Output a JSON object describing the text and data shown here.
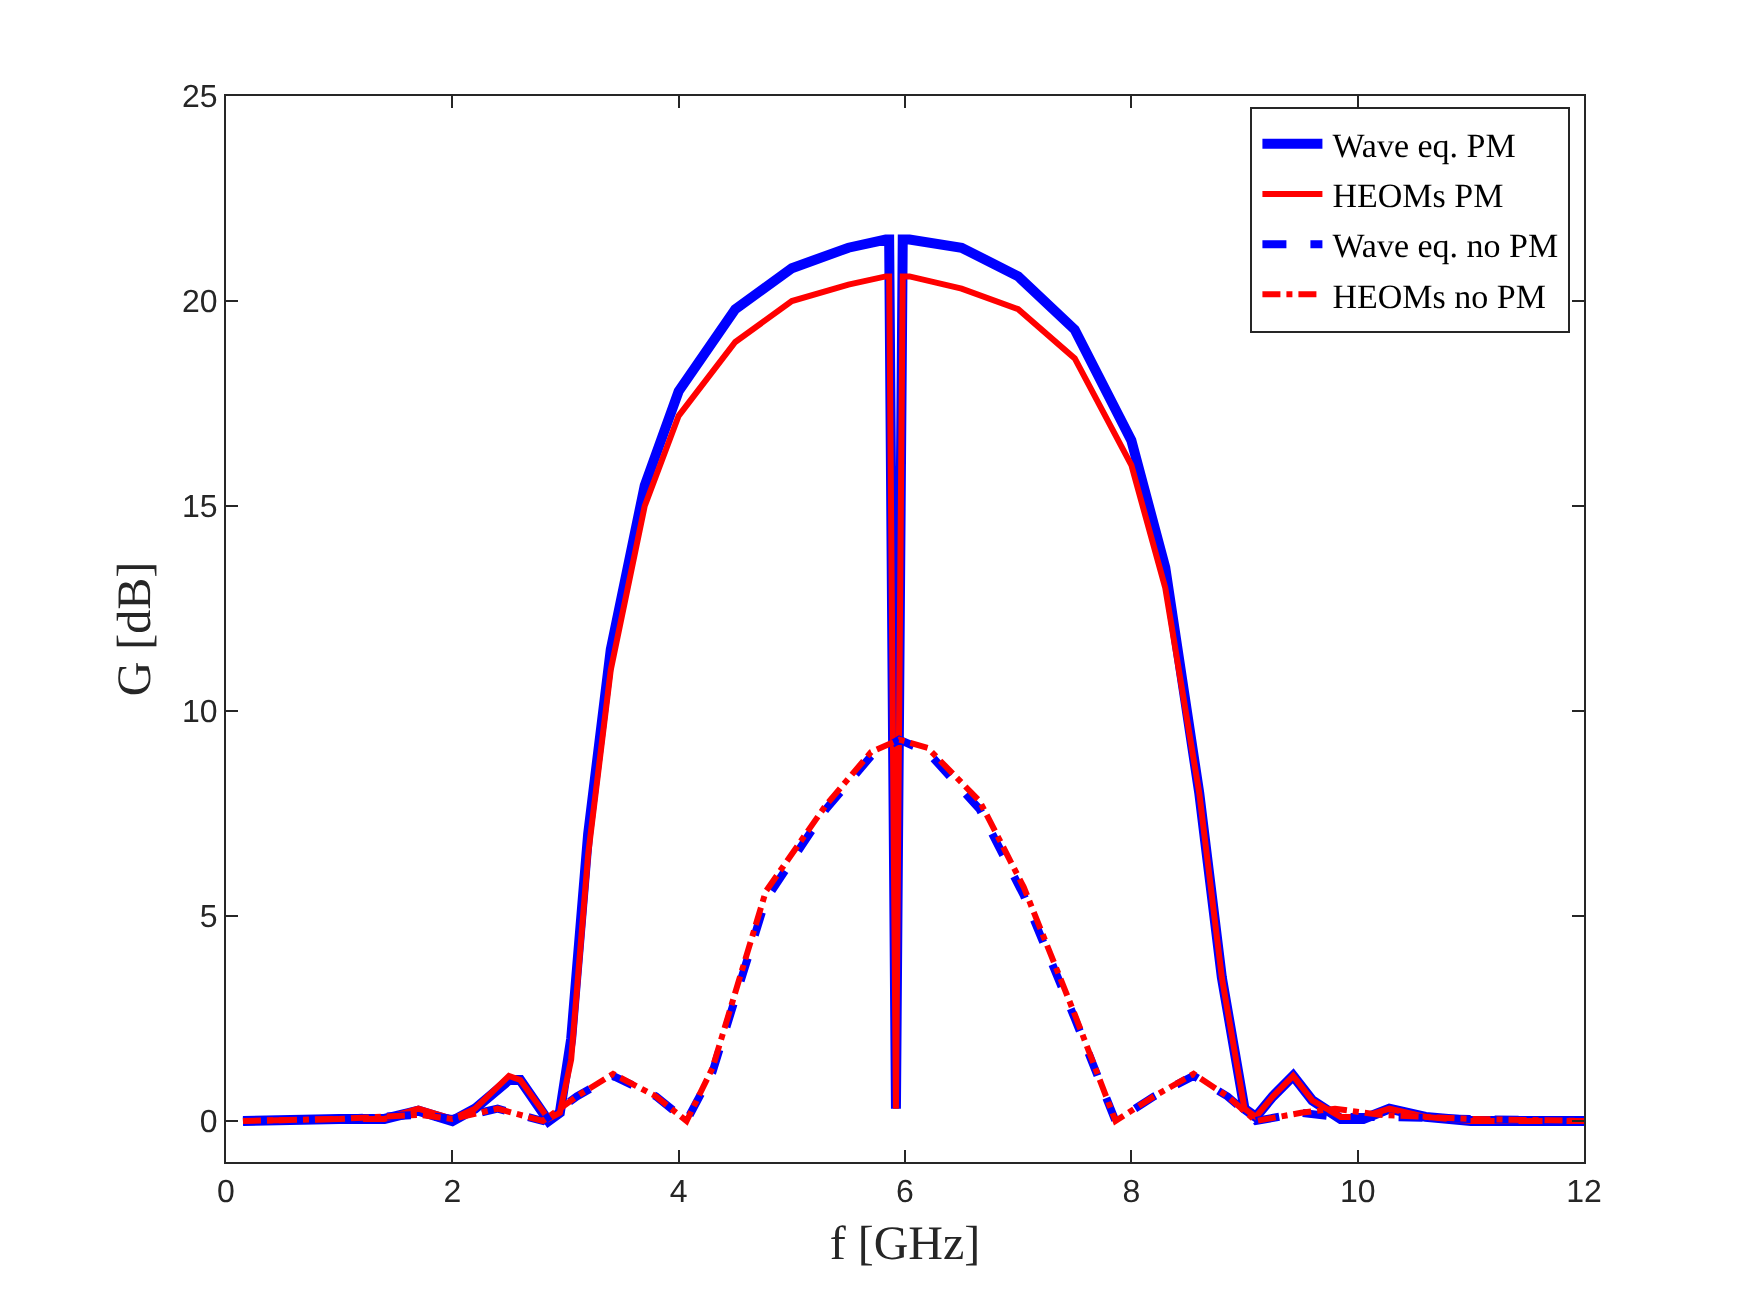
{
  "chart_data": {
    "type": "line",
    "xlabel": "f [GHz]",
    "ylabel": "G [dB]",
    "xlim": [
      0,
      12
    ],
    "ylim": [
      -1,
      25
    ],
    "xticks": [
      0,
      2,
      4,
      6,
      8,
      10,
      12
    ],
    "yticks": [
      0,
      5,
      10,
      15,
      20,
      25
    ],
    "grid": false,
    "legend": "top right",
    "series": [
      {
        "name": "Wave eq. PM",
        "color": "#0000ff",
        "line_style": "solid",
        "x": [
          0.15,
          1,
          1.4,
          1.7,
          2,
          2.2,
          2.5,
          2.6,
          2.85,
          2.95,
          3.05,
          3.2,
          3.4,
          3.7,
          4,
          4.5,
          5,
          5.5,
          5.83,
          5.86,
          5.92,
          5.98,
          6.04,
          6.5,
          7,
          7.5,
          8,
          8.3,
          8.6,
          8.8,
          9.0,
          9.1,
          9.25,
          9.43,
          9.6,
          9.85,
          10.05,
          10.28,
          10.6,
          11,
          12
        ],
        "values": [
          0,
          0.05,
          0.05,
          0.25,
          0,
          0.3,
          1.0,
          1.0,
          0,
          0.2,
          2,
          7,
          11.5,
          15.5,
          17.8,
          19.8,
          20.8,
          21.3,
          21.5,
          21.5,
          0.3,
          21.5,
          21.5,
          21.3,
          20.6,
          19.3,
          16.6,
          13.5,
          8,
          3.5,
          0.3,
          0.1,
          0.6,
          1.1,
          0.5,
          0.05,
          0.05,
          0.3,
          0.1,
          0,
          0
        ]
      },
      {
        "name": "HEOMs PM",
        "color": "#ff0000",
        "line_style": "solid",
        "x": [
          0.15,
          1,
          1.4,
          1.7,
          2,
          2.2,
          2.5,
          2.6,
          2.85,
          2.95,
          3.05,
          3.2,
          3.4,
          3.7,
          4,
          4.5,
          5,
          5.5,
          5.83,
          5.86,
          5.92,
          5.98,
          6.04,
          6.5,
          7,
          7.5,
          8,
          8.3,
          8.6,
          8.8,
          9.0,
          9.1,
          9.25,
          9.43,
          9.6,
          9.85,
          10.05,
          10.28,
          10.6,
          11,
          12
        ],
        "values": [
          0,
          0.05,
          0.05,
          0.3,
          0.05,
          0.3,
          1.1,
          1.0,
          0.05,
          0.2,
          1.5,
          6.5,
          11,
          15,
          17.2,
          19,
          20,
          20.4,
          20.6,
          20.6,
          0.3,
          20.6,
          20.6,
          20.3,
          19.8,
          18.6,
          16,
          13,
          8,
          3.5,
          0.3,
          0.1,
          0.6,
          1.1,
          0.5,
          0.1,
          0.1,
          0.3,
          0.1,
          0,
          0
        ]
      },
      {
        "name": "Wave eq. no PM",
        "color": "#0000ff",
        "line_style": "dashed",
        "x": [
          0.15,
          1,
          1.7,
          2,
          2.4,
          2.8,
          3.1,
          3.42,
          3.8,
          4.07,
          4.3,
          4.77,
          5.3,
          5.7,
          5.95,
          6.2,
          6.66,
          7.05,
          7.5,
          7.86,
          8.2,
          8.55,
          8.85,
          9.1,
          9.5,
          9.8,
          10.2,
          11,
          12
        ],
        "values": [
          0,
          0.05,
          0.15,
          0.05,
          0.3,
          0,
          0.6,
          1.1,
          0.6,
          0,
          1.2,
          5.4,
          7.6,
          8.9,
          9.3,
          9,
          7.6,
          5.5,
          2.5,
          0,
          0.6,
          1.1,
          0.6,
          0,
          0.2,
          0.1,
          0.1,
          0.05,
          0
        ]
      },
      {
        "name": "HEOMs no PM",
        "color": "#ff0000",
        "line_style": "dashdot",
        "x": [
          0.15,
          1,
          1.7,
          2,
          2.4,
          2.8,
          3.1,
          3.42,
          3.8,
          4.07,
          4.3,
          4.77,
          5.3,
          5.7,
          5.95,
          6.2,
          6.66,
          7.05,
          7.5,
          7.86,
          8.2,
          8.55,
          8.85,
          9.1,
          9.5,
          9.8,
          10.2,
          11,
          12
        ],
        "values": [
          0,
          0.05,
          0.15,
          0.05,
          0.3,
          0,
          0.6,
          1.15,
          0.6,
          0,
          1.3,
          5.6,
          7.7,
          9,
          9.3,
          9.1,
          7.8,
          5.7,
          2.6,
          0,
          0.6,
          1.15,
          0.6,
          0,
          0.2,
          0.3,
          0.15,
          0.05,
          0
        ]
      }
    ]
  }
}
